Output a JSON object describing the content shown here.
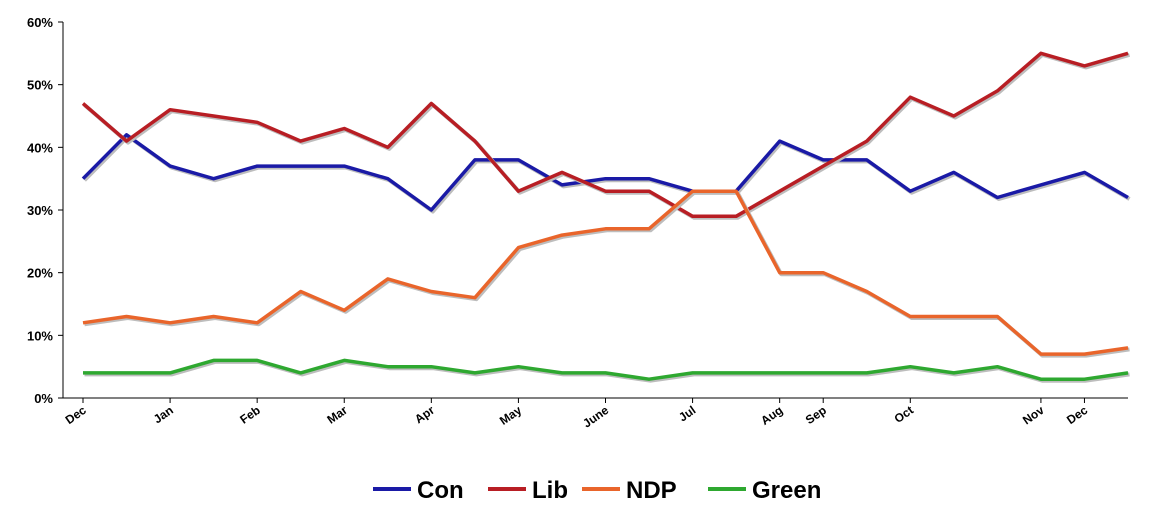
{
  "chart_data": {
    "type": "line",
    "ylim": [
      0,
      60
    ],
    "y_ticks": [
      "0%",
      "10%",
      "20%",
      "30%",
      "40%",
      "50%",
      "60%"
    ],
    "x_tick_labels": [
      "Dec",
      "Jan",
      "Feb",
      "Mar",
      "Apr",
      "May",
      "June",
      "Jul",
      "Aug",
      "Sep",
      "Oct",
      "Nov",
      "Dec"
    ],
    "x_tick_points": [
      0,
      2,
      4,
      6,
      8,
      10,
      12,
      14,
      16,
      17,
      19,
      22,
      23
    ],
    "grid": false,
    "legend_position": "bottom",
    "series": [
      {
        "name": "Con",
        "color": "#1a1aa6",
        "values": [
          35,
          42,
          37,
          35,
          37,
          37,
          37,
          35,
          30,
          38,
          38,
          34,
          35,
          35,
          33,
          33,
          41,
          38,
          38,
          33,
          36,
          32,
          34,
          36,
          32
        ]
      },
      {
        "name": "Lib",
        "color": "#b81e24",
        "values": [
          47,
          41,
          46,
          45,
          44,
          41,
          43,
          40,
          47,
          41,
          33,
          36,
          33,
          33,
          29,
          29,
          33,
          37,
          41,
          48,
          45,
          49,
          55,
          53,
          55
        ]
      },
      {
        "name": "NDP",
        "color": "#e9652b",
        "values": [
          12,
          13,
          12,
          13,
          12,
          17,
          14,
          19,
          17,
          16,
          24,
          26,
          27,
          27,
          33,
          33,
          20,
          20,
          17,
          13,
          13,
          13,
          7,
          7,
          8
        ]
      },
      {
        "name": "Green",
        "color": "#2ea830",
        "values": [
          4,
          4,
          4,
          6,
          6,
          4,
          6,
          5,
          5,
          4,
          5,
          4,
          4,
          3,
          4,
          4,
          4,
          4,
          4,
          5,
          4,
          5,
          3,
          3,
          4
        ]
      }
    ]
  }
}
